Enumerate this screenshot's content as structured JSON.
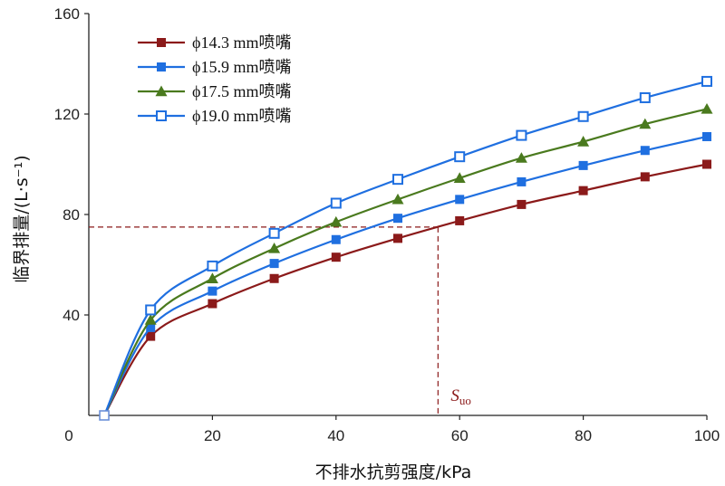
{
  "chart_data": {
    "type": "line",
    "xlabel": "不排水抗剪强度/kPa",
    "ylabel": "临界排量/(L·s⁻¹)",
    "xlim": [
      0,
      100
    ],
    "ylim": [
      0,
      160
    ],
    "xticks": [
      "0",
      "20",
      "40",
      "60",
      "80",
      "100"
    ],
    "yticks": [
      "40",
      "80",
      "120",
      "160"
    ],
    "grid": false,
    "legend_position": "top-left",
    "x": [
      2.5,
      10,
      20,
      30,
      40,
      50,
      60,
      70,
      80,
      90,
      100
    ],
    "series": [
      {
        "name": "ϕ14.3 mm喷嘴",
        "color": "#8b1a1a",
        "marker": "square-filled",
        "values": [
          0,
          31.5,
          44.5,
          54.5,
          63,
          70.5,
          77.5,
          84,
          89.5,
          95,
          100
        ]
      },
      {
        "name": "ϕ15.9 mm喷嘴",
        "color": "#1f6fe0",
        "marker": "square-filled",
        "values": [
          0,
          35,
          49.5,
          60.5,
          70,
          78.5,
          86,
          93,
          99.5,
          105.5,
          111
        ]
      },
      {
        "name": "ϕ17.5 mm喷嘴",
        "color": "#4a7a1e",
        "marker": "triangle-filled",
        "values": [
          0,
          38,
          54.5,
          66.5,
          77,
          86,
          94.5,
          102.5,
          109,
          116,
          122
        ]
      },
      {
        "name": "ϕ19.0 mm喷嘴",
        "color": "#1f6fe0",
        "marker": "square-open",
        "values": [
          0,
          42,
          59.5,
          72.5,
          84.5,
          94,
          103,
          111.5,
          119,
          126.5,
          133
        ]
      }
    ],
    "annotation": {
      "label_main": "S",
      "label_sub": "uo",
      "x": 56.5,
      "y": 75,
      "color": "#8b1a1a"
    }
  }
}
